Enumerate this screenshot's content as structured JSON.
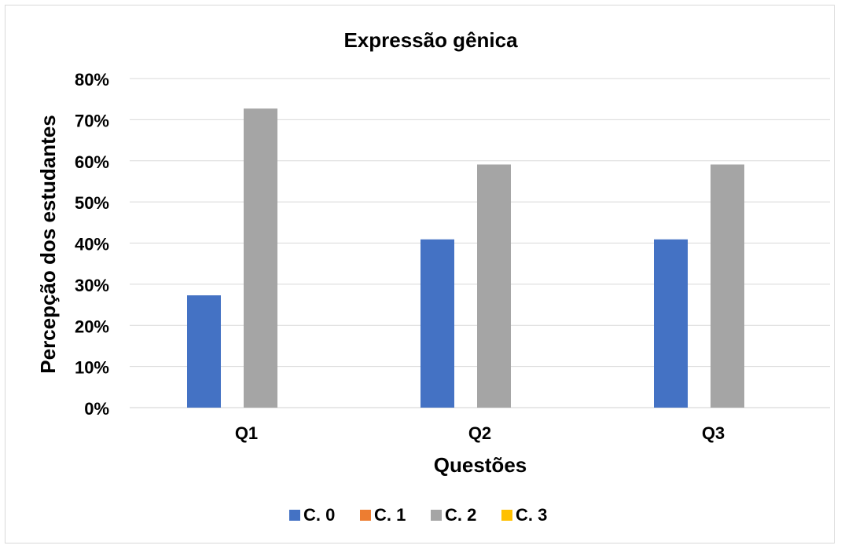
{
  "chart_data": {
    "type": "bar",
    "title": "Expressão gênica",
    "xlabel": "Questões",
    "ylabel": "Percepção dos estudantes",
    "categories": [
      "Q1",
      "Q2",
      "Q3"
    ],
    "ylim": [
      0,
      0.8
    ],
    "yticks": [
      0,
      0.1,
      0.2,
      0.3,
      0.4,
      0.5,
      0.6,
      0.7,
      0.8
    ],
    "ytick_labels": [
      "0%",
      "10%",
      "20%",
      "30%",
      "40%",
      "50%",
      "60%",
      "70%",
      "80%"
    ],
    "grid": "horizontal",
    "legend_position": "bottom",
    "series": [
      {
        "name": "C. 0",
        "color": "#4472c4",
        "values": [
          0.273,
          0.409,
          0.409
        ]
      },
      {
        "name": "C. 1",
        "color": "#ed7d31",
        "values": [
          0,
          0,
          0
        ]
      },
      {
        "name": "C. 2",
        "color": "#a5a5a5",
        "values": [
          0.727,
          0.591,
          0.591
        ]
      },
      {
        "name": "C. 3",
        "color": "#ffc000",
        "values": [
          0,
          0,
          0
        ]
      }
    ]
  }
}
